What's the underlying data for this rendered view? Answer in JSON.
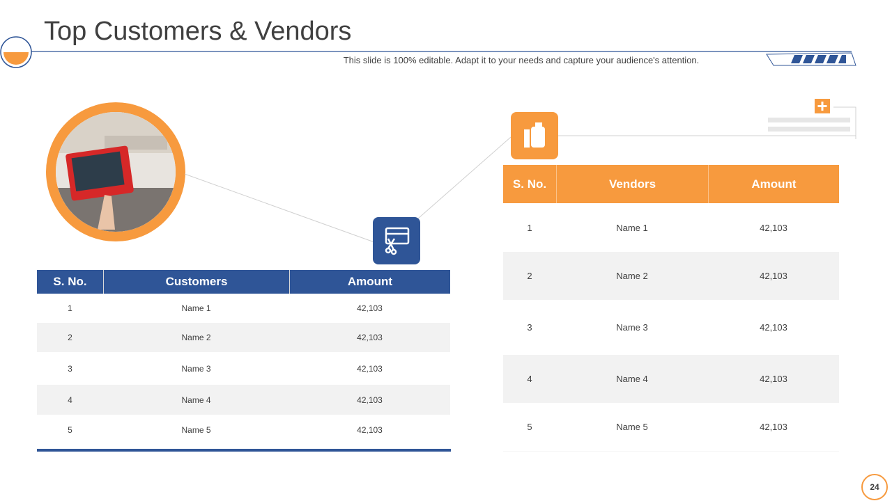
{
  "header": {
    "title": "Top Customers & Vendors",
    "subtitle": "This slide is 100% editable. Adapt it to your needs and capture your audience's attention."
  },
  "customers_table": {
    "headers": [
      "S. No.",
      "Customers",
      "Amount"
    ],
    "rows": [
      [
        "1",
        "Name 1",
        "42,103"
      ],
      [
        "2",
        "Name 2",
        "42,103"
      ],
      [
        "3",
        "Name 3",
        "42,103"
      ],
      [
        "4",
        "Name 4",
        "42,103"
      ],
      [
        "5",
        "Name 5",
        "42,103"
      ]
    ]
  },
  "vendors_table": {
    "headers": [
      "S. No.",
      "Vendors",
      "Amount"
    ],
    "rows": [
      [
        "1",
        "Name 1",
        "42,103"
      ],
      [
        "2",
        "Name 2",
        "42,103"
      ],
      [
        "3",
        "Name 3",
        "42,103"
      ],
      [
        "4",
        "Name 4",
        "42,103"
      ],
      [
        "5",
        "Name 5",
        "42,103"
      ]
    ]
  },
  "page_number": "24"
}
